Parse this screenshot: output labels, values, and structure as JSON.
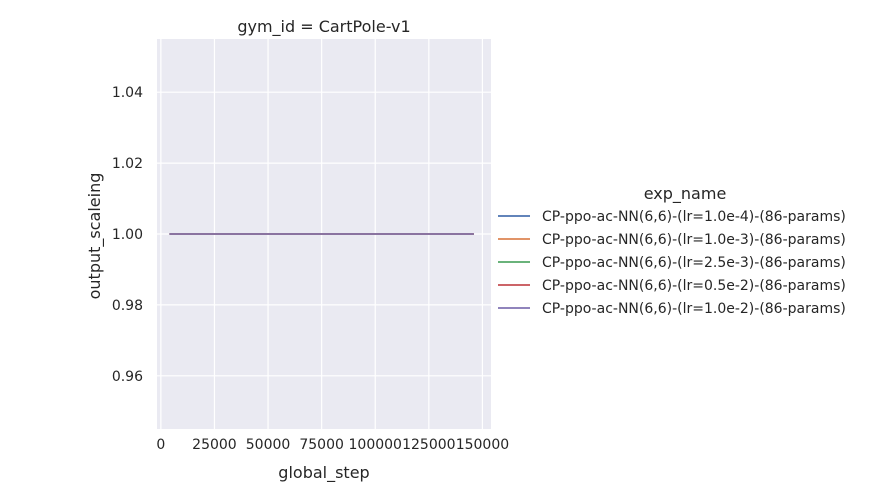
{
  "chart_data": {
    "type": "line",
    "title": "gym_id = CartPole-v1",
    "xlabel": "global_step",
    "ylabel": "output_scaleing",
    "xlim": [
      -1800,
      154000
    ],
    "ylim": [
      0.945,
      1.055
    ],
    "xticks": [
      0,
      25000,
      50000,
      75000,
      100000,
      125000,
      150000
    ],
    "xtick_labels": [
      "0",
      "25000",
      "50000",
      "75000",
      "100000",
      "125000",
      "150000"
    ],
    "yticks": [
      0.96,
      0.98,
      1.0,
      1.02,
      1.04
    ],
    "ytick_labels": [
      "0.96",
      "0.98",
      "1.00",
      "1.02",
      "1.04"
    ],
    "grid": true,
    "legend": {
      "title": "exp_name",
      "placement": "right"
    },
    "series": [
      {
        "name": "CP-ppo-ac-NN(6,6)-(lr=1.0e-4)-(86-params)",
        "color": "#4c72b0",
        "x": [
          4000,
          146000
        ],
        "y": [
          1.0,
          1.0
        ]
      },
      {
        "name": "CP-ppo-ac-NN(6,6)-(lr=1.0e-3)-(86-params)",
        "color": "#dd8452",
        "x": [
          4000,
          146000
        ],
        "y": [
          1.0,
          1.0
        ]
      },
      {
        "name": "CP-ppo-ac-NN(6,6)-(lr=2.5e-3)-(86-params)",
        "color": "#55a868",
        "x": [
          4000,
          146000
        ],
        "y": [
          1.0,
          1.0
        ]
      },
      {
        "name": "CP-ppo-ac-NN(6,6)-(lr=0.5e-2)-(86-params)",
        "color": "#c44e52",
        "x": [
          4000,
          146000
        ],
        "y": [
          1.0,
          1.0
        ]
      },
      {
        "name": "CP-ppo-ac-NN(6,6)-(lr=1.0e-2)-(86-params)",
        "color": "#8172b3",
        "x": [
          4000,
          146000
        ],
        "y": [
          1.0,
          1.0
        ]
      }
    ]
  }
}
